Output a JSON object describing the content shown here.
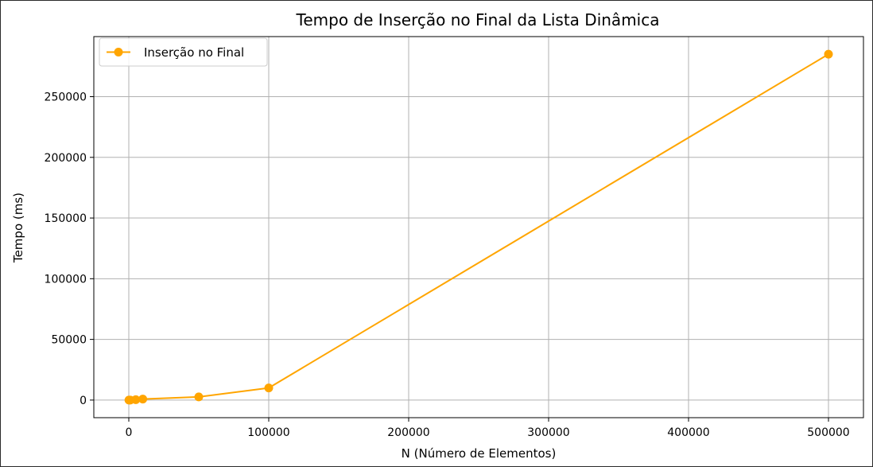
{
  "chart_data": {
    "type": "line",
    "title": "Tempo de Inserção no Final da Lista Dinâmica",
    "xlabel": "N (Número de Elementos)",
    "ylabel": "Tempo (ms)",
    "xlim": [
      -25000,
      525000
    ],
    "ylim": [
      -14500,
      299500
    ],
    "x_ticks": [
      0,
      100000,
      200000,
      300000,
      400000,
      500000
    ],
    "y_ticks": [
      0,
      50000,
      100000,
      150000,
      200000,
      250000
    ],
    "grid": true,
    "legend_position": "top-left",
    "series": [
      {
        "name": "Inserção no Final",
        "color": "#FFA500",
        "marker": "circle",
        "x": [
          100,
          1000,
          5000,
          10000,
          50000,
          100000,
          500000
        ],
        "y": [
          0,
          20,
          300,
          800,
          2600,
          10000,
          285000
        ]
      }
    ]
  }
}
